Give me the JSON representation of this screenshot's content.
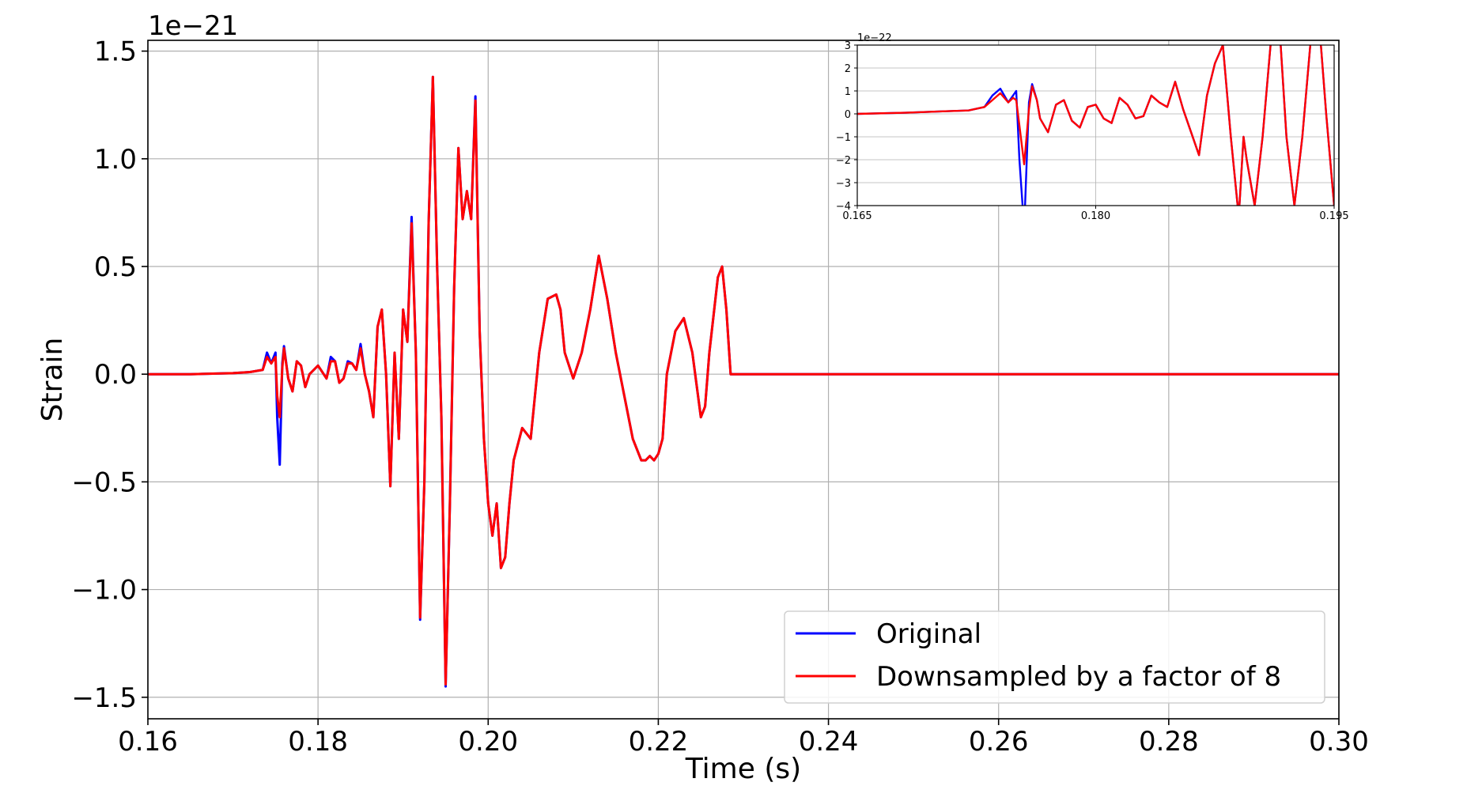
{
  "chart_data": [
    {
      "type": "line",
      "xlabel": "Time (s)",
      "ylabel": "Strain",
      "y_offset_label": "1e−21",
      "xlim": [
        0.16,
        0.3
      ],
      "ylim": [
        -1.6,
        1.55
      ],
      "xticks": [
        0.16,
        0.18,
        0.2,
        0.22,
        0.24,
        0.26,
        0.28,
        0.3
      ],
      "xtick_labels": [
        "0.16",
        "0.18",
        "0.20",
        "0.22",
        "0.24",
        "0.26",
        "0.28",
        "0.30"
      ],
      "yticks": [
        -1.5,
        -1.0,
        -0.5,
        0.0,
        0.5,
        1.0,
        1.5
      ],
      "ytick_labels": [
        "−1.5",
        "−1.0",
        "−0.5",
        "0.0",
        "0.5",
        "1.0",
        "1.5"
      ],
      "grid": true,
      "legend_position": "lower-right",
      "series": [
        {
          "name": "Original",
          "color": "#0000ff",
          "x": [
            0.16,
            0.165,
            0.17,
            0.172,
            0.1735,
            0.174,
            0.1745,
            0.175,
            0.1752,
            0.1755,
            0.1758,
            0.176,
            0.1765,
            0.177,
            0.1775,
            0.178,
            0.1785,
            0.179,
            0.18,
            0.1805,
            0.181,
            0.1815,
            0.182,
            0.1825,
            0.183,
            0.1835,
            0.184,
            0.1845,
            0.185,
            0.1855,
            0.186,
            0.1865,
            0.187,
            0.1875,
            0.188,
            0.1885,
            0.189,
            0.1895,
            0.19,
            0.1905,
            0.191,
            0.1915,
            0.192,
            0.1925,
            0.193,
            0.1935,
            0.194,
            0.1945,
            0.195,
            0.1955,
            0.196,
            0.1965,
            0.197,
            0.1975,
            0.198,
            0.1985,
            0.199,
            0.1995,
            0.2,
            0.2005,
            0.201,
            0.2015,
            0.202,
            0.2025,
            0.203,
            0.204,
            0.205,
            0.2055,
            0.206,
            0.207,
            0.208,
            0.2085,
            0.209,
            0.21,
            0.211,
            0.212,
            0.213,
            0.214,
            0.215,
            0.216,
            0.217,
            0.218,
            0.2185,
            0.219,
            0.2195,
            0.22,
            0.2205,
            0.221,
            0.222,
            0.223,
            0.224,
            0.225,
            0.2255,
            0.226,
            0.227,
            0.2275,
            0.228,
            0.2285,
            0.229,
            0.24,
            0.26,
            0.28,
            0.3
          ],
          "y": [
            0.0,
            0.0,
            0.005,
            0.01,
            0.02,
            0.1,
            0.05,
            0.1,
            -0.2,
            -0.42,
            0.05,
            0.13,
            -0.02,
            -0.08,
            0.06,
            0.04,
            -0.06,
            0.0,
            0.04,
            0.01,
            -0.02,
            0.08,
            0.06,
            -0.04,
            -0.02,
            0.06,
            0.05,
            0.02,
            0.14,
            0.0,
            -0.08,
            -0.2,
            0.22,
            0.3,
            0.0,
            -0.52,
            0.1,
            -0.3,
            0.3,
            0.15,
            0.73,
            0.1,
            -1.14,
            -0.5,
            0.7,
            1.38,
            0.5,
            -0.2,
            -1.45,
            -0.6,
            0.4,
            1.05,
            0.72,
            0.85,
            0.72,
            1.29,
            0.2,
            -0.3,
            -0.6,
            -0.75,
            -0.6,
            -0.9,
            -0.85,
            -0.6,
            -0.4,
            -0.25,
            -0.3,
            -0.1,
            0.1,
            0.35,
            0.37,
            0.3,
            0.1,
            -0.02,
            0.1,
            0.3,
            0.55,
            0.35,
            0.1,
            -0.1,
            -0.3,
            -0.4,
            -0.4,
            -0.38,
            -0.4,
            -0.37,
            -0.3,
            0.0,
            0.2,
            0.26,
            0.1,
            -0.2,
            -0.15,
            0.1,
            0.45,
            0.5,
            0.3,
            0.0,
            0.0,
            0.0,
            0.0,
            0.0,
            0.0
          ]
        },
        {
          "name": "Downsampled by a factor of 8",
          "color": "#ff0000",
          "x": [
            0.16,
            0.165,
            0.17,
            0.172,
            0.1735,
            0.174,
            0.1745,
            0.175,
            0.1752,
            0.1755,
            0.1758,
            0.176,
            0.1765,
            0.177,
            0.1775,
            0.178,
            0.1785,
            0.179,
            0.18,
            0.1805,
            0.181,
            0.1815,
            0.182,
            0.1825,
            0.183,
            0.1835,
            0.184,
            0.1845,
            0.185,
            0.1855,
            0.186,
            0.1865,
            0.187,
            0.1875,
            0.188,
            0.1885,
            0.189,
            0.1895,
            0.19,
            0.1905,
            0.191,
            0.1915,
            0.192,
            0.1925,
            0.193,
            0.1935,
            0.194,
            0.1945,
            0.195,
            0.1955,
            0.196,
            0.1965,
            0.197,
            0.1975,
            0.198,
            0.1985,
            0.199,
            0.1995,
            0.2,
            0.2005,
            0.201,
            0.2015,
            0.202,
            0.2025,
            0.203,
            0.204,
            0.205,
            0.2055,
            0.206,
            0.207,
            0.208,
            0.2085,
            0.209,
            0.21,
            0.211,
            0.212,
            0.213,
            0.214,
            0.215,
            0.216,
            0.217,
            0.218,
            0.2185,
            0.219,
            0.2195,
            0.22,
            0.2205,
            0.221,
            0.222,
            0.223,
            0.224,
            0.225,
            0.2255,
            0.226,
            0.227,
            0.2275,
            0.228,
            0.2285,
            0.229,
            0.24,
            0.26,
            0.28,
            0.3
          ],
          "y": [
            0.0,
            0.0,
            0.005,
            0.01,
            0.02,
            0.08,
            0.05,
            0.08,
            -0.1,
            -0.2,
            0.03,
            0.12,
            -0.02,
            -0.08,
            0.06,
            0.04,
            -0.06,
            0.0,
            0.04,
            0.01,
            -0.02,
            0.06,
            0.06,
            -0.04,
            -0.02,
            0.05,
            0.05,
            0.02,
            0.12,
            0.0,
            -0.08,
            -0.2,
            0.22,
            0.3,
            0.0,
            -0.52,
            0.1,
            -0.3,
            0.3,
            0.15,
            0.7,
            0.1,
            -1.13,
            -0.5,
            0.7,
            1.38,
            0.5,
            -0.2,
            -1.44,
            -0.6,
            0.4,
            1.05,
            0.72,
            0.85,
            0.72,
            1.27,
            0.2,
            -0.3,
            -0.6,
            -0.75,
            -0.6,
            -0.9,
            -0.85,
            -0.6,
            -0.4,
            -0.25,
            -0.3,
            -0.1,
            0.1,
            0.35,
            0.37,
            0.3,
            0.1,
            -0.02,
            0.1,
            0.3,
            0.55,
            0.35,
            0.1,
            -0.1,
            -0.3,
            -0.4,
            -0.4,
            -0.38,
            -0.4,
            -0.37,
            -0.3,
            0.0,
            0.2,
            0.26,
            0.1,
            -0.2,
            -0.15,
            0.1,
            0.45,
            0.5,
            0.3,
            0.0,
            0.0,
            0.0,
            0.0,
            0.0,
            0.0
          ]
        }
      ]
    },
    {
      "type": "line",
      "role": "inset",
      "y_offset_label": "1e−22",
      "xlim": [
        0.165,
        0.195
      ],
      "ylim": [
        -4,
        3
      ],
      "xticks": [
        0.165,
        0.18,
        0.195
      ],
      "xtick_labels": [
        "0.165",
        "0.180",
        "0.195"
      ],
      "yticks": [
        -4,
        -3,
        -2,
        -1,
        0,
        1,
        2,
        3
      ],
      "ytick_labels": [
        "−4",
        "−3",
        "−2",
        "−1",
        "0",
        "1",
        "2",
        "3"
      ],
      "grid": true,
      "series": [
        {
          "name": "Original",
          "color": "#0000ff",
          "x": [
            0.165,
            0.168,
            0.17,
            0.172,
            0.173,
            0.1735,
            0.174,
            0.1745,
            0.1748,
            0.175,
            0.1752,
            0.1755,
            0.1758,
            0.176,
            0.1763,
            0.1765,
            0.177,
            0.1775,
            0.178,
            0.1785,
            0.179,
            0.1795,
            0.18,
            0.1805,
            0.181,
            0.1815,
            0.182,
            0.1825,
            0.183,
            0.1835,
            0.184,
            0.1845,
            0.185,
            0.1855,
            0.186,
            0.1865,
            0.187,
            0.1875,
            0.188,
            0.1885,
            0.189,
            0.1893,
            0.1895,
            0.19,
            0.1905,
            0.191,
            0.1915,
            0.192,
            0.1925,
            0.193,
            0.1935,
            0.194,
            0.1945,
            0.195
          ],
          "y": [
            0.0,
            0.05,
            0.1,
            0.15,
            0.3,
            0.8,
            1.1,
            0.5,
            0.8,
            1.0,
            -2.0,
            -5.0,
            0.5,
            1.3,
            0.6,
            -0.2,
            -0.8,
            0.4,
            0.6,
            -0.3,
            -0.6,
            0.3,
            0.4,
            -0.2,
            -0.4,
            0.7,
            0.4,
            -0.2,
            -0.1,
            0.8,
            0.5,
            0.3,
            1.4,
            0.2,
            -0.8,
            -1.8,
            0.8,
            2.2,
            3.0,
            -1.0,
            -4.5,
            -1.0,
            -2.0,
            -4.0,
            -1.0,
            3.0,
            4.5,
            -1.0,
            -4.0,
            -1.0,
            3.0,
            4.5,
            0.0,
            -4.0
          ]
        },
        {
          "name": "Downsampled by a factor of 8",
          "color": "#ff0000",
          "x": [
            0.165,
            0.168,
            0.17,
            0.172,
            0.173,
            0.1735,
            0.174,
            0.1745,
            0.1748,
            0.175,
            0.1752,
            0.1755,
            0.1758,
            0.176,
            0.1763,
            0.1765,
            0.177,
            0.1775,
            0.178,
            0.1785,
            0.179,
            0.1795,
            0.18,
            0.1805,
            0.181,
            0.1815,
            0.182,
            0.1825,
            0.183,
            0.1835,
            0.184,
            0.1845,
            0.185,
            0.1855,
            0.186,
            0.1865,
            0.187,
            0.1875,
            0.188,
            0.1885,
            0.189,
            0.1893,
            0.1895,
            0.19,
            0.1905,
            0.191,
            0.1915,
            0.192,
            0.1925,
            0.193,
            0.1935,
            0.194,
            0.1945,
            0.195
          ],
          "y": [
            0.0,
            0.05,
            0.1,
            0.15,
            0.3,
            0.6,
            0.9,
            0.5,
            0.7,
            0.6,
            -0.5,
            -2.2,
            0.2,
            1.2,
            0.6,
            -0.2,
            -0.8,
            0.4,
            0.6,
            -0.3,
            -0.6,
            0.3,
            0.4,
            -0.2,
            -0.4,
            0.7,
            0.4,
            -0.2,
            -0.1,
            0.8,
            0.5,
            0.3,
            1.4,
            0.2,
            -0.8,
            -1.8,
            0.8,
            2.2,
            3.0,
            -1.0,
            -4.5,
            -1.0,
            -2.0,
            -4.0,
            -1.0,
            3.0,
            4.5,
            -1.0,
            -4.0,
            -1.0,
            3.0,
            4.5,
            0.0,
            -4.0
          ]
        }
      ]
    }
  ]
}
